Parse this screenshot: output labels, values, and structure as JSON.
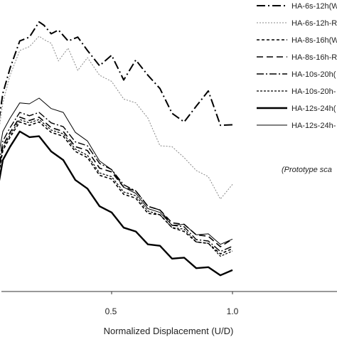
{
  "chart_data": {
    "type": "line",
    "xlabel": "Normalized Displacement (U/D)",
    "x_ticks": [
      "0.5",
      "1.0"
    ],
    "xlim": [
      0,
      1.4
    ],
    "annotation": "(Prototype sca",
    "grid": false,
    "legend_position": "top-right",
    "series": [
      {
        "name": "HA-6s-12h(W",
        "color": "#000000",
        "x": [
          0,
          0.02,
          0.05,
          0.08,
          0.12,
          0.16,
          0.2,
          0.22,
          0.25,
          0.28,
          0.32,
          0.36,
          0.4,
          0.45,
          0.5,
          0.55,
          0.6,
          0.65,
          0.7,
          0.75,
          0.8,
          0.85,
          0.9,
          0.95,
          1.0
        ],
        "y": [
          0,
          0.62,
          0.82,
          0.95,
          1.04,
          1.08,
          1.12,
          1.13,
          1.07,
          1.11,
          1.04,
          1.08,
          1.0,
          0.96,
          0.98,
          0.9,
          0.96,
          0.92,
          0.84,
          0.76,
          0.7,
          0.79,
          0.83,
          0.71,
          0.7
        ]
      },
      {
        "name": "HA-6s-12h-R",
        "color": "#888888",
        "x": [
          0,
          0.02,
          0.05,
          0.08,
          0.12,
          0.16,
          0.2,
          0.22,
          0.25,
          0.28,
          0.32,
          0.36,
          0.4,
          0.45,
          0.5,
          0.55,
          0.6,
          0.65,
          0.7,
          0.75,
          0.8,
          0.85,
          0.9,
          0.95,
          1.0
        ],
        "y": [
          0,
          0.58,
          0.78,
          0.92,
          1.0,
          1.04,
          1.06,
          1.07,
          1.03,
          0.98,
          1.01,
          0.94,
          0.97,
          0.92,
          0.87,
          0.82,
          0.78,
          0.74,
          0.6,
          0.62,
          0.55,
          0.52,
          0.47,
          0.4,
          0.45
        ]
      },
      {
        "name": "HA-8s-16h(W",
        "color": "#000000",
        "x": [
          0,
          0.02,
          0.05,
          0.08,
          0.12,
          0.16,
          0.2,
          0.25,
          0.3,
          0.35,
          0.4,
          0.45,
          0.5,
          0.55,
          0.6,
          0.65,
          0.7,
          0.75,
          0.8,
          0.85,
          0.9,
          0.95,
          1.0
        ],
        "y": [
          0,
          0.42,
          0.58,
          0.66,
          0.7,
          0.71,
          0.7,
          0.68,
          0.64,
          0.6,
          0.55,
          0.5,
          0.46,
          0.42,
          0.38,
          0.34,
          0.31,
          0.28,
          0.24,
          0.22,
          0.19,
          0.17,
          0.18
        ]
      },
      {
        "name": "HA-8s-16h-R",
        "color": "#000000",
        "x": [
          0,
          0.02,
          0.05,
          0.08,
          0.12,
          0.16,
          0.2,
          0.25,
          0.3,
          0.35,
          0.4,
          0.45,
          0.5,
          0.55,
          0.6,
          0.65,
          0.7,
          0.75,
          0.8,
          0.85,
          0.9,
          0.95,
          1.0
        ],
        "y": [
          0,
          0.44,
          0.6,
          0.68,
          0.72,
          0.73,
          0.72,
          0.7,
          0.66,
          0.62,
          0.58,
          0.53,
          0.49,
          0.45,
          0.41,
          0.37,
          0.33,
          0.3,
          0.27,
          0.25,
          0.22,
          0.2,
          0.22
        ]
      },
      {
        "name": "HA-10s-20h(",
        "color": "#000000",
        "x": [
          0,
          0.02,
          0.05,
          0.08,
          0.12,
          0.16,
          0.2,
          0.25,
          0.3,
          0.35,
          0.4,
          0.45,
          0.5,
          0.55,
          0.6,
          0.65,
          0.7,
          0.75,
          0.8,
          0.85,
          0.9,
          0.95,
          1.0
        ],
        "y": [
          0,
          0.45,
          0.62,
          0.7,
          0.74,
          0.75,
          0.74,
          0.72,
          0.68,
          0.64,
          0.6,
          0.55,
          0.5,
          0.46,
          0.41,
          0.37,
          0.33,
          0.29,
          0.26,
          0.23,
          0.2,
          0.18,
          0.19
        ]
      },
      {
        "name": "HA-10s-20h-",
        "color": "#000000",
        "x": [
          0,
          0.02,
          0.05,
          0.08,
          0.12,
          0.16,
          0.2,
          0.25,
          0.3,
          0.35,
          0.4,
          0.45,
          0.5,
          0.55,
          0.6,
          0.65,
          0.7,
          0.75,
          0.8,
          0.85,
          0.9,
          0.95,
          1.0
        ],
        "y": [
          0,
          0.43,
          0.59,
          0.67,
          0.71,
          0.72,
          0.71,
          0.69,
          0.65,
          0.61,
          0.56,
          0.51,
          0.47,
          0.43,
          0.39,
          0.35,
          0.31,
          0.28,
          0.25,
          0.22,
          0.19,
          0.16,
          0.17
        ]
      },
      {
        "name": "HA-12s-24h(",
        "color": "#000000",
        "x": [
          0,
          0.02,
          0.05,
          0.08,
          0.12,
          0.16,
          0.2,
          0.25,
          0.3,
          0.35,
          0.4,
          0.45,
          0.5,
          0.55,
          0.6,
          0.65,
          0.7,
          0.75,
          0.8,
          0.85,
          0.9,
          0.95,
          1.0
        ],
        "y": [
          0,
          0.38,
          0.54,
          0.62,
          0.66,
          0.66,
          0.64,
          0.6,
          0.54,
          0.48,
          0.42,
          0.37,
          0.32,
          0.28,
          0.24,
          0.21,
          0.18,
          0.15,
          0.13,
          0.11,
          0.09,
          0.08,
          0.09
        ]
      },
      {
        "name": "HA-12s-24h-",
        "color": "#000000",
        "x": [
          0,
          0.02,
          0.05,
          0.08,
          0.12,
          0.16,
          0.2,
          0.25,
          0.3,
          0.35,
          0.4,
          0.45,
          0.5,
          0.55,
          0.6,
          0.65,
          0.7,
          0.75,
          0.8,
          0.85,
          0.9,
          0.95,
          1.0
        ],
        "y": [
          0,
          0.5,
          0.66,
          0.74,
          0.78,
          0.8,
          0.8,
          0.78,
          0.74,
          0.68,
          0.62,
          0.56,
          0.5,
          0.45,
          0.4,
          0.36,
          0.32,
          0.29,
          0.27,
          0.25,
          0.23,
          0.21,
          0.22
        ]
      }
    ]
  }
}
